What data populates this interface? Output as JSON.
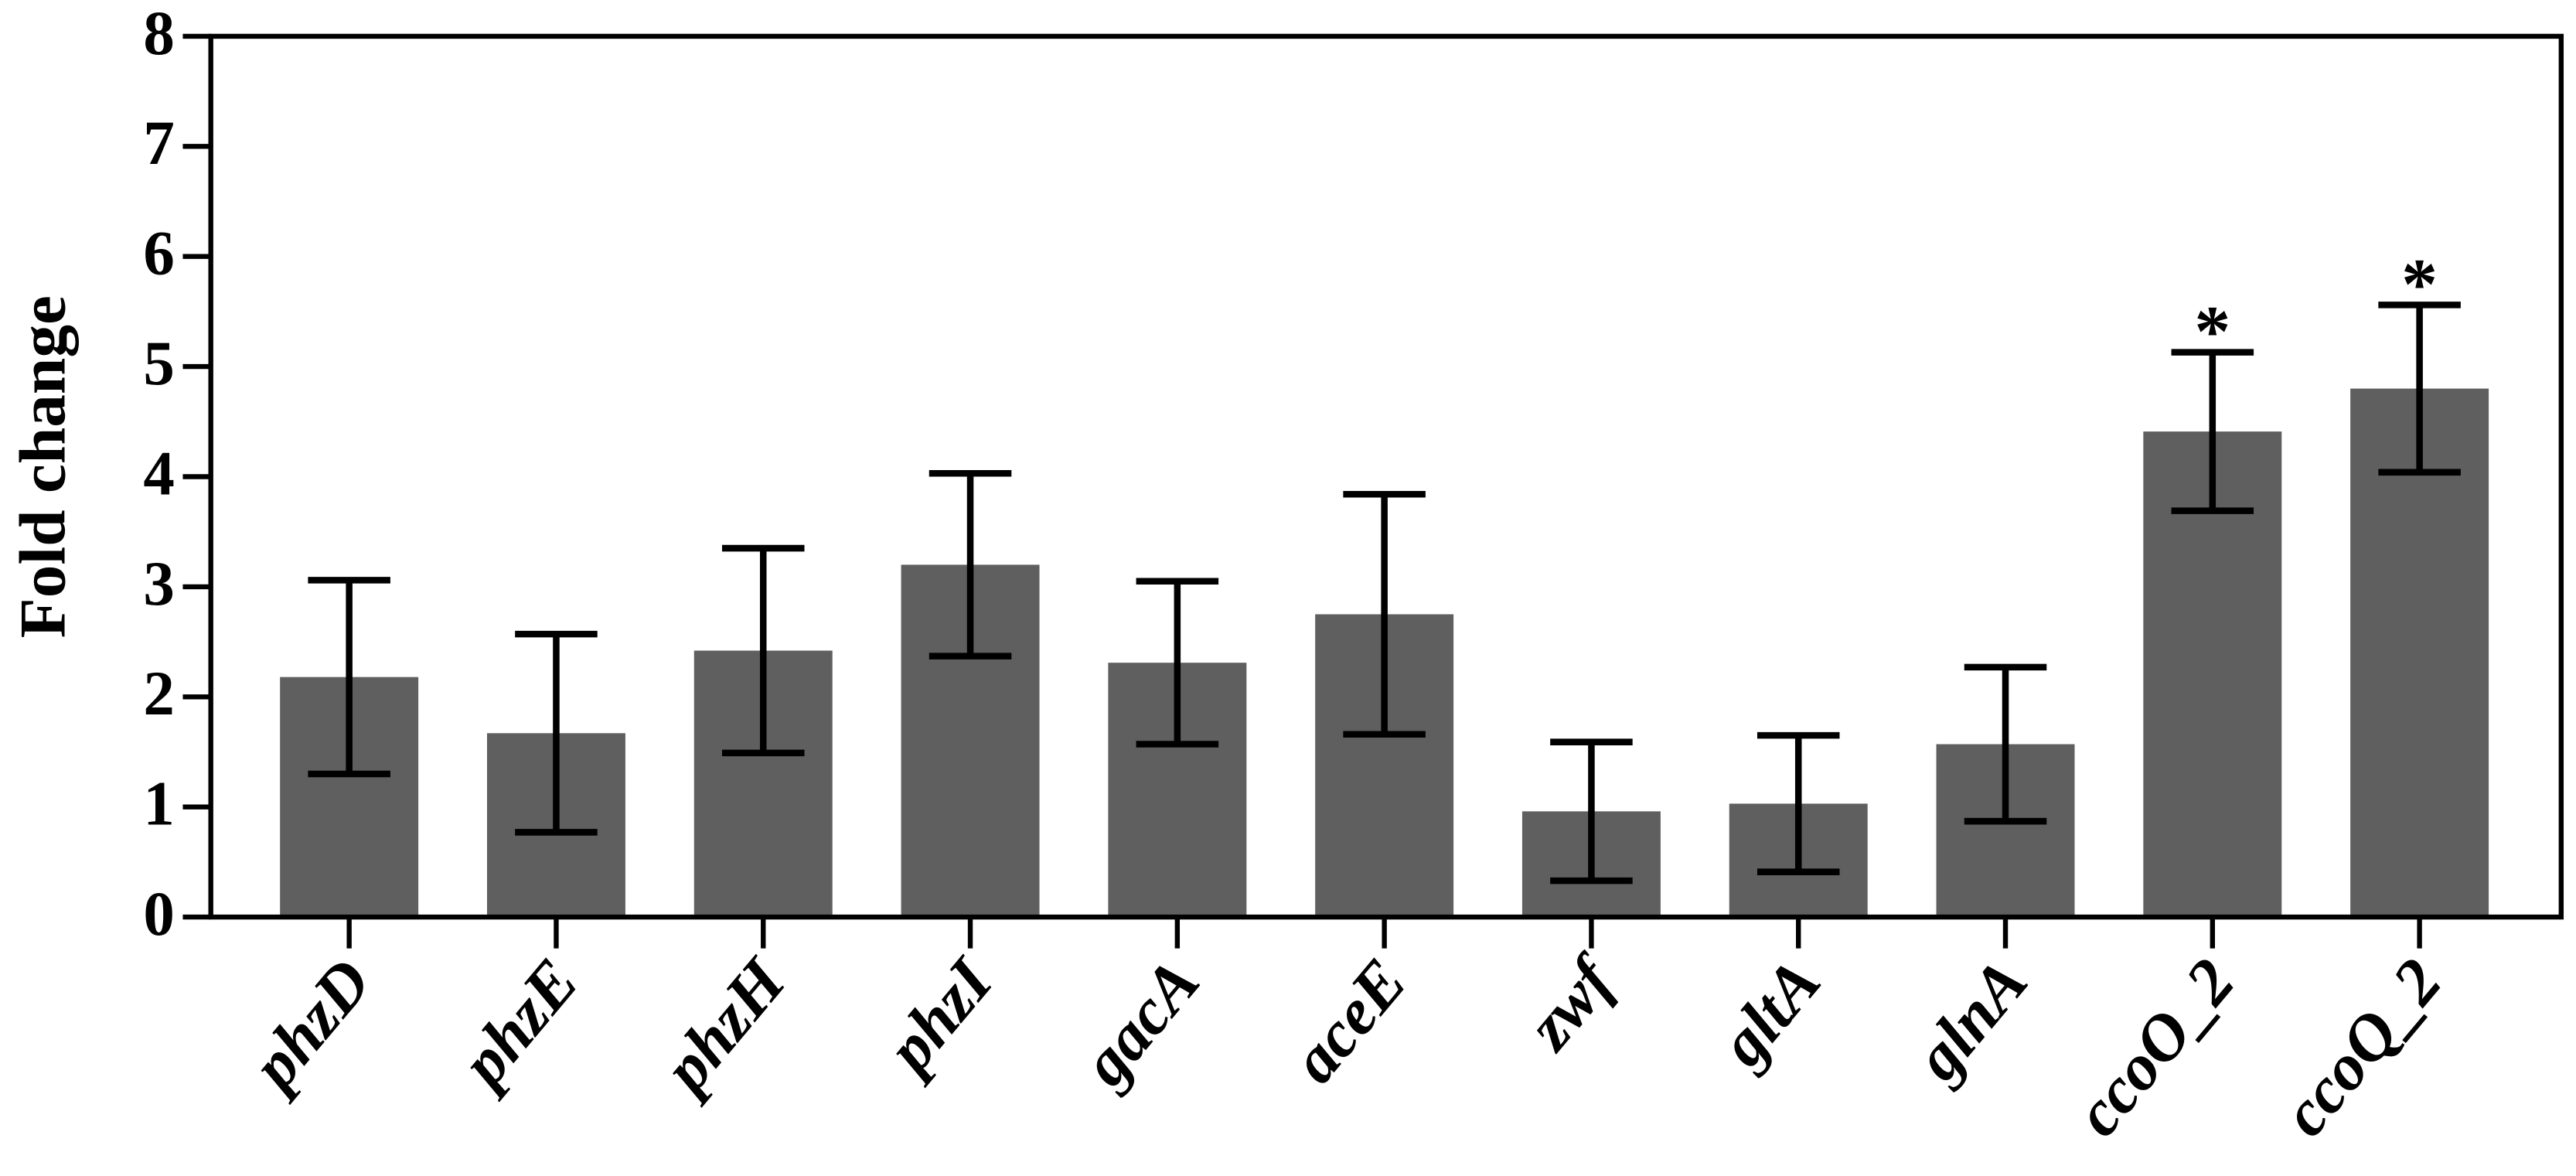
{
  "chart_data": {
    "type": "bar",
    "y_label": "Fold change",
    "categories": [
      "phzD",
      "phzE",
      "phzH",
      "phzI",
      "gacA",
      "aceE",
      "zwf",
      "gltA",
      "glnA",
      "ccoO_2",
      "ccoQ_2"
    ],
    "values": [
      2.18,
      1.67,
      2.42,
      3.2,
      2.31,
      2.75,
      0.96,
      1.03,
      1.57,
      4.41,
      4.8
    ],
    "errors": [
      0.88,
      0.9,
      0.93,
      0.83,
      0.74,
      1.09,
      0.63,
      0.62,
      0.7,
      0.72,
      0.76
    ],
    "color": "#5f5f5f",
    "ylim": [
      0,
      8
    ],
    "yticks": [
      0,
      1,
      2,
      3,
      4,
      5,
      6,
      7,
      8
    ],
    "annotations": [
      {
        "category": "ccoO_2",
        "text": "*"
      },
      {
        "category": "ccoQ_2",
        "text": "*"
      }
    ]
  }
}
